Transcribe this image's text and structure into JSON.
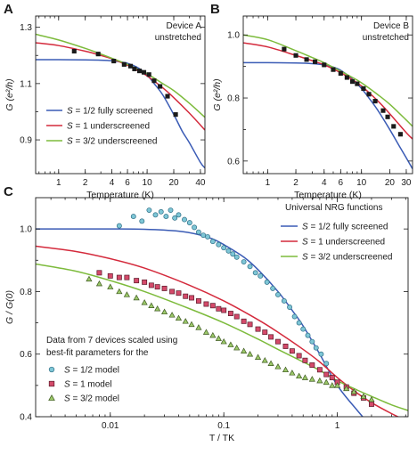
{
  "colors": {
    "s12": "#3a5bb5",
    "s1": "#d42a3c",
    "s32": "#7dbb3c",
    "pt_cyan_fill": "#7ec6d6",
    "pt_cyan_stroke": "#2f6f86",
    "pt_red_fill": "#d44a6a",
    "pt_red_stroke": "#5a1a2a",
    "pt_green_fill": "#9cc96a",
    "pt_green_stroke": "#3f5a22",
    "black": "#1a1a1a"
  },
  "chart_data": [
    {
      "panel": "A",
      "type": "line",
      "annotation": [
        "Device A",
        "unstretched"
      ],
      "xlabel": "Temperature (K)",
      "ylabel": "G (e²/h)",
      "xscale": "log",
      "xlim": [
        0.55,
        45
      ],
      "ylim": [
        0.78,
        1.34
      ],
      "xticks": [
        1,
        2,
        4,
        6,
        10,
        20,
        40
      ],
      "xtick_labels": [
        "1",
        "2",
        "4",
        "6",
        "10",
        "20",
        "40"
      ],
      "yticks": [
        0.9,
        1.1,
        1.3
      ],
      "ytick_labels": [
        "0.9",
        "1.1",
        "1.3"
      ],
      "legend_position": "lower-left",
      "legend": [
        "S = 1/2 fully screened",
        "S = 1 underscreened",
        "S = 3/2 underscreened"
      ],
      "series": [
        {
          "name": "S = 1/2 fully screened",
          "color_key": "s12",
          "x": [
            0.55,
            1,
            2,
            3,
            4,
            5,
            6,
            8,
            10,
            12,
            15,
            20,
            25,
            30,
            40,
            45
          ],
          "y": [
            1.185,
            1.185,
            1.184,
            1.183,
            1.181,
            1.177,
            1.172,
            1.155,
            1.13,
            1.1,
            1.06,
            0.99,
            0.93,
            0.89,
            0.82,
            0.8
          ]
        },
        {
          "name": "S = 1 underscreened",
          "color_key": "s1",
          "x": [
            0.55,
            1,
            2,
            3,
            4,
            6,
            8,
            10,
            15,
            20,
            30,
            45
          ],
          "y": [
            1.245,
            1.235,
            1.215,
            1.2,
            1.188,
            1.165,
            1.145,
            1.127,
            1.085,
            1.05,
            0.995,
            0.935
          ]
        },
        {
          "name": "S = 3/2 underscreened",
          "color_key": "s32",
          "x": [
            0.55,
            1,
            2,
            3,
            4,
            6,
            8,
            10,
            15,
            20,
            30,
            45
          ],
          "y": [
            1.275,
            1.255,
            1.225,
            1.205,
            1.19,
            1.168,
            1.15,
            1.135,
            1.1,
            1.075,
            1.03,
            0.98
          ]
        },
        {
          "name": "Device A data",
          "color_key": "black",
          "marker": "square",
          "x": [
            1.5,
            2.8,
            4.2,
            5.5,
            6.5,
            7.2,
            8.2,
            9.2,
            10.5,
            12,
            14,
            17,
            21
          ],
          "y": [
            1.215,
            1.205,
            1.18,
            1.168,
            1.162,
            1.152,
            1.145,
            1.14,
            1.132,
            1.11,
            1.09,
            1.055,
            0.99
          ]
        }
      ]
    },
    {
      "panel": "B",
      "type": "line",
      "annotation": [
        "Device B",
        "unstretched"
      ],
      "xlabel": "Temperature (K)",
      "ylabel": "G (e²/h)",
      "xscale": "log",
      "xlim": [
        0.55,
        35
      ],
      "ylim": [
        0.56,
        1.06
      ],
      "xticks": [
        1,
        2,
        4,
        6,
        10,
        20,
        30
      ],
      "xtick_labels": [
        "1",
        "2",
        "4",
        "6",
        "10",
        "20",
        "30"
      ],
      "yticks": [
        0.6,
        0.8,
        1.0
      ],
      "ytick_labels": [
        "0.6",
        "0.8",
        "1.0"
      ],
      "series": [
        {
          "name": "S = 1/2 fully screened",
          "color_key": "s12",
          "x": [
            0.55,
            1,
            2,
            3,
            4,
            5,
            6,
            8,
            10,
            12,
            15,
            20,
            25,
            30,
            35
          ],
          "y": [
            0.912,
            0.912,
            0.911,
            0.909,
            0.905,
            0.898,
            0.888,
            0.86,
            0.83,
            0.8,
            0.76,
            0.7,
            0.65,
            0.61,
            0.575
          ]
        },
        {
          "name": "S = 1 underscreened",
          "color_key": "s1",
          "x": [
            0.55,
            1,
            2,
            3,
            4,
            6,
            8,
            10,
            15,
            20,
            30,
            35
          ],
          "y": [
            0.975,
            0.962,
            0.935,
            0.918,
            0.905,
            0.88,
            0.858,
            0.838,
            0.79,
            0.75,
            0.69,
            0.67
          ]
        },
        {
          "name": "S = 3/2 underscreened",
          "color_key": "s32",
          "x": [
            0.55,
            1,
            2,
            3,
            4,
            6,
            8,
            10,
            15,
            20,
            30,
            35
          ],
          "y": [
            1.0,
            0.985,
            0.95,
            0.928,
            0.912,
            0.885,
            0.865,
            0.848,
            0.81,
            0.78,
            0.73,
            0.71
          ]
        },
        {
          "name": "Device B data",
          "color_key": "black",
          "marker": "square",
          "x": [
            1.5,
            2,
            2.6,
            3.2,
            4,
            5,
            6,
            7,
            8,
            9,
            10.5,
            12,
            14,
            17,
            19,
            22,
            26
          ],
          "y": [
            0.955,
            0.935,
            0.922,
            0.915,
            0.905,
            0.89,
            0.878,
            0.865,
            0.852,
            0.845,
            0.83,
            0.812,
            0.79,
            0.76,
            0.74,
            0.71,
            0.685
          ]
        }
      ]
    },
    {
      "panel": "C",
      "type": "line",
      "legend_title": "Universal NRG functions",
      "legend": [
        "S = 1/2 fully screened",
        "S = 1 underscreened",
        "S = 3/2 underscreened"
      ],
      "markers_legend_title": [
        "Data from 7 devices scaled using",
        "best-fit parameters for the"
      ],
      "markers_legend": [
        "S = 1/2 model",
        "S = 1 model",
        "S = 3/2 model"
      ],
      "xlabel": "T / TK",
      "ylabel": "G / G(0)",
      "xscale": "log",
      "xlim": [
        0.0022,
        4.2
      ],
      "ylim": [
        0.4,
        1.1
      ],
      "xticks": [
        0.01,
        0.1,
        1
      ],
      "xtick_labels": [
        "0.01",
        "0.1",
        "1"
      ],
      "yticks": [
        0.4,
        0.6,
        0.8,
        1.0
      ],
      "ytick_labels": [
        "0.4",
        "0.6",
        "0.8",
        "1.0"
      ],
      "series": [
        {
          "name": "S = 1/2 fully screened",
          "color_key": "s12",
          "x": [
            0.0022,
            0.005,
            0.01,
            0.02,
            0.04,
            0.06,
            0.08,
            0.1,
            0.15,
            0.2,
            0.3,
            0.4,
            0.5,
            0.7,
            1.0,
            1.5,
            2.0,
            3.0
          ],
          "y": [
            1.0,
            1.0,
            1.0,
            0.999,
            0.993,
            0.982,
            0.968,
            0.95,
            0.91,
            0.87,
            0.8,
            0.74,
            0.69,
            0.6,
            0.5,
            0.42,
            0.37,
            0.32
          ]
        },
        {
          "name": "S = 1 underscreened",
          "color_key": "s1",
          "x": [
            0.0022,
            0.005,
            0.01,
            0.02,
            0.05,
            0.1,
            0.2,
            0.3,
            0.5,
            0.7,
            1.0,
            1.5,
            2.0,
            3.0,
            4.2
          ],
          "y": [
            0.945,
            0.928,
            0.905,
            0.875,
            0.82,
            0.77,
            0.71,
            0.67,
            0.615,
            0.575,
            0.525,
            0.475,
            0.445,
            0.41,
            0.385
          ]
        },
        {
          "name": "S = 3/2 underscreened",
          "color_key": "s32",
          "x": [
            0.0022,
            0.005,
            0.01,
            0.02,
            0.05,
            0.1,
            0.2,
            0.3,
            0.5,
            0.7,
            1.0,
            1.5,
            2.0,
            3.0,
            4.2
          ],
          "y": [
            0.888,
            0.865,
            0.835,
            0.8,
            0.745,
            0.7,
            0.648,
            0.615,
            0.575,
            0.548,
            0.515,
            0.485,
            0.465,
            0.438,
            0.42
          ]
        },
        {
          "name": "S = 1/2 model",
          "marker": "circle",
          "color_key": "pt_cyan",
          "x": [
            0.012,
            0.016,
            0.019,
            0.022,
            0.025,
            0.028,
            0.031,
            0.034,
            0.037,
            0.04,
            0.045,
            0.05,
            0.055,
            0.06,
            0.066,
            0.072,
            0.08,
            0.09,
            0.1,
            0.11,
            0.12,
            0.13,
            0.15,
            0.17,
            0.19,
            0.21,
            0.24,
            0.27,
            0.3,
            0.34,
            0.38,
            0.42,
            0.46,
            0.5,
            0.55,
            0.6,
            0.65,
            0.72,
            0.8
          ],
          "y": [
            1.01,
            1.04,
            1.025,
            1.06,
            1.045,
            1.055,
            1.04,
            1.06,
            1.035,
            1.045,
            1.03,
            1.02,
            1.005,
            0.99,
            0.98,
            0.975,
            0.96,
            0.95,
            0.94,
            0.93,
            0.92,
            0.91,
            0.895,
            0.88,
            0.86,
            0.85,
            0.83,
            0.81,
            0.79,
            0.77,
            0.75,
            0.72,
            0.7,
            0.68,
            0.66,
            0.64,
            0.62,
            0.6,
            0.57
          ]
        },
        {
          "name": "S = 1 model",
          "marker": "square",
          "color_key": "pt_red",
          "x": [
            0.008,
            0.01,
            0.012,
            0.014,
            0.017,
            0.02,
            0.023,
            0.026,
            0.03,
            0.035,
            0.04,
            0.046,
            0.052,
            0.06,
            0.07,
            0.08,
            0.09,
            0.1,
            0.115,
            0.13,
            0.15,
            0.17,
            0.2,
            0.23,
            0.26,
            0.3,
            0.35,
            0.4,
            0.46,
            0.52,
            0.6,
            0.7,
            0.8,
            0.9,
            1.0,
            1.2,
            1.4,
            1.7,
            2.0
          ],
          "y": [
            0.86,
            0.85,
            0.845,
            0.845,
            0.835,
            0.83,
            0.82,
            0.815,
            0.81,
            0.8,
            0.795,
            0.785,
            0.78,
            0.77,
            0.76,
            0.755,
            0.745,
            0.74,
            0.73,
            0.72,
            0.705,
            0.695,
            0.68,
            0.67,
            0.655,
            0.64,
            0.625,
            0.61,
            0.595,
            0.58,
            0.565,
            0.55,
            0.535,
            0.525,
            0.51,
            0.495,
            0.475,
            0.46,
            0.44
          ]
        },
        {
          "name": "S = 3/2 model",
          "marker": "triangle",
          "color_key": "pt_green",
          "x": [
            0.0065,
            0.008,
            0.01,
            0.012,
            0.014,
            0.017,
            0.02,
            0.023,
            0.026,
            0.03,
            0.035,
            0.04,
            0.046,
            0.052,
            0.06,
            0.07,
            0.08,
            0.09,
            0.1,
            0.115,
            0.13,
            0.15,
            0.17,
            0.2,
            0.23,
            0.26,
            0.3,
            0.35,
            0.4,
            0.46,
            0.52,
            0.6,
            0.7,
            0.8,
            0.9,
            1.0,
            1.2,
            1.4,
            1.7,
            2.0
          ],
          "y": [
            0.84,
            0.825,
            0.815,
            0.8,
            0.79,
            0.78,
            0.765,
            0.755,
            0.745,
            0.735,
            0.725,
            0.715,
            0.705,
            0.695,
            0.685,
            0.67,
            0.66,
            0.65,
            0.64,
            0.63,
            0.62,
            0.61,
            0.6,
            0.59,
            0.58,
            0.57,
            0.56,
            0.55,
            0.54,
            0.53,
            0.525,
            0.52,
            0.515,
            0.51,
            0.5,
            0.5,
            0.49,
            0.48,
            0.465,
            0.455
          ]
        }
      ]
    }
  ]
}
